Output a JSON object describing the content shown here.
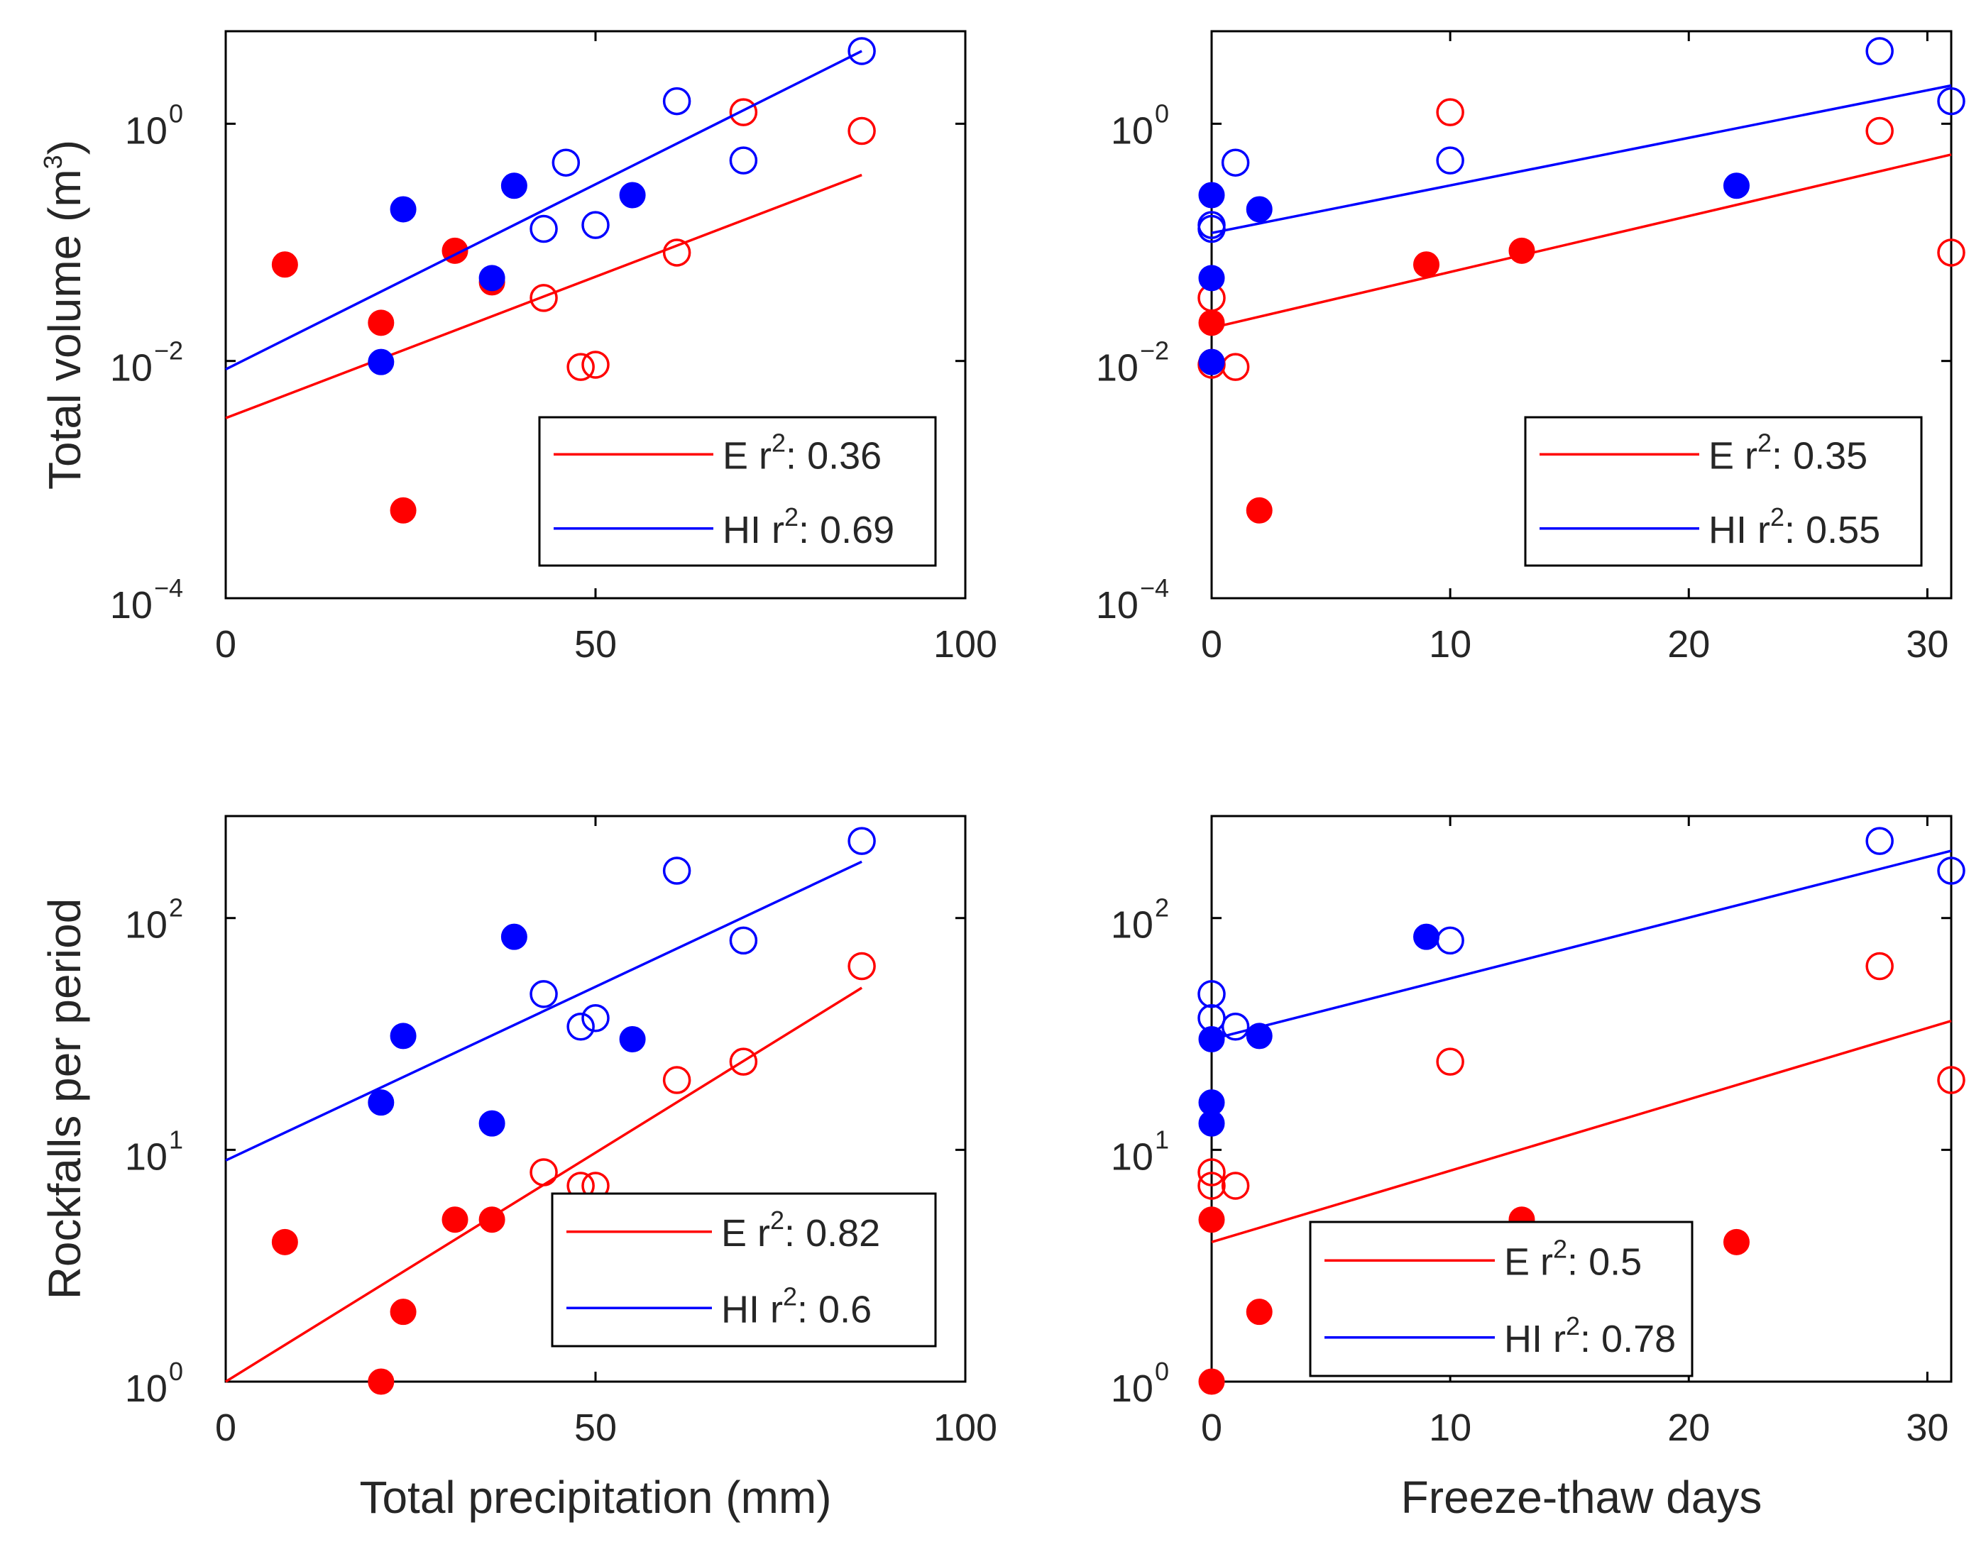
{
  "colors": {
    "E": "#ff0000",
    "HI": "#0000ff",
    "axis": "#000000"
  },
  "legend_entries": [
    {
      "series": "E",
      "prefix": "E r",
      "exp": "2",
      "suffix": ": "
    },
    {
      "series": "HI",
      "prefix": "HI r",
      "exp": "2",
      "suffix": ": "
    }
  ],
  "chart_data": [
    {
      "id": "vol_precip",
      "type": "scatter",
      "y_scale": "log",
      "xlim": [
        0,
        100
      ],
      "ylim_exp": [
        -4,
        0.78
      ],
      "xticks": [
        0,
        50,
        100
      ],
      "ytick_exps": [
        -4,
        -2,
        0
      ],
      "ylabel": {
        "text": "Total volume (m",
        "sup": "3",
        "tail": ")"
      },
      "xlabel": "",
      "legend_r2": [
        "0.36",
        "0.69"
      ],
      "legend_position": "bottom-right",
      "series": [
        {
          "name": "E",
          "fit": {
            "x": [
              0,
              86
            ],
            "y": [
              0.0033,
              0.37
            ]
          },
          "filled": {
            "x": [
              8,
              21,
              24,
              31,
              36
            ],
            "y": [
              0.065,
              0.021,
              0.00055,
              0.085,
              0.046
            ]
          },
          "open": {
            "x": [
              43,
              48,
              50,
              61,
              70,
              86
            ],
            "y": [
              0.034,
              0.0089,
              0.0093,
              0.082,
              1.25,
              0.87
            ]
          }
        },
        {
          "name": "HI",
          "fit": {
            "x": [
              0,
              86
            ],
            "y": [
              0.0085,
              4.1
            ]
          },
          "filled": {
            "x": [
              21,
              24,
              36,
              39,
              55
            ],
            "y": [
              0.0098,
              0.19,
              0.05,
              0.3,
              0.25
            ]
          },
          "open": {
            "x": [
              43,
              46,
              50,
              61,
              70,
              86
            ],
            "y": [
              0.13,
              0.47,
              0.14,
              1.55,
              0.49,
              4.1
            ]
          }
        }
      ]
    },
    {
      "id": "vol_ftd",
      "type": "scatter",
      "y_scale": "log",
      "xlim": [
        0,
        31
      ],
      "ylim_exp": [
        -4,
        0.78
      ],
      "xticks": [
        0,
        10,
        20,
        30
      ],
      "ytick_exps": [
        -4,
        -2,
        0
      ],
      "ylabel": null,
      "xlabel": "",
      "legend_r2": [
        "0.35",
        "0.55"
      ],
      "legend_position": "bottom-right",
      "series": [
        {
          "name": "E",
          "fit": {
            "x": [
              0,
              31
            ],
            "y": [
              0.019,
              0.55
            ]
          },
          "filled": {
            "x": [
              0,
              0,
              2,
              9,
              13
            ],
            "y": [
              0.021,
              0.0098,
              0.00055,
              0.065,
              0.085
            ]
          },
          "open": {
            "x": [
              0,
              0,
              1,
              10,
              28,
              31
            ],
            "y": [
              0.034,
              0.0093,
              0.0089,
              1.25,
              0.87,
              0.082
            ]
          }
        },
        {
          "name": "HI",
          "fit": {
            "x": [
              0,
              31
            ],
            "y": [
              0.12,
              2.1
            ]
          },
          "filled": {
            "x": [
              0,
              0,
              0,
              2,
              22
            ],
            "y": [
              0.25,
              0.05,
              0.0098,
              0.19,
              0.3
            ]
          },
          "open": {
            "x": [
              0,
              0,
              1,
              10,
              28,
              31
            ],
            "y": [
              0.13,
              0.14,
              0.47,
              0.49,
              4.1,
              1.55
            ]
          }
        }
      ]
    },
    {
      "id": "count_precip",
      "type": "scatter",
      "y_scale": "log",
      "xlim": [
        0,
        100
      ],
      "ylim_exp": [
        0,
        2.44
      ],
      "xticks": [
        0,
        50,
        100
      ],
      "ytick_exps": [
        0,
        1,
        2
      ],
      "ylabel": {
        "text": "Rockfalls per period",
        "sup": "",
        "tail": ""
      },
      "xlabel": "Total precipitation (mm)",
      "legend_r2": [
        "0.82",
        "0.6"
      ],
      "legend_position": "bottom-right",
      "series": [
        {
          "name": "E",
          "fit": {
            "x": [
              0,
              86
            ],
            "y": [
              1,
              50
            ]
          },
          "filled": {
            "x": [
              8,
              21,
              24,
              31,
              36
            ],
            "y": [
              4,
              1,
              2,
              5,
              5
            ]
          },
          "open": {
            "x": [
              43,
              48,
              50,
              61,
              70,
              86
            ],
            "y": [
              8,
              7,
              7,
              20,
              24,
              62
            ]
          }
        },
        {
          "name": "HI",
          "fit": {
            "x": [
              0,
              86
            ],
            "y": [
              9,
              175
            ]
          },
          "filled": {
            "x": [
              21,
              24,
              36,
              39,
              55
            ],
            "y": [
              16,
              31,
              13,
              83,
              30
            ]
          },
          "open": {
            "x": [
              43,
              48,
              50,
              61,
              70,
              86
            ],
            "y": [
              47,
              34,
              37,
              160,
              80,
              215
            ]
          }
        }
      ]
    },
    {
      "id": "count_ftd",
      "type": "scatter",
      "y_scale": "log",
      "xlim": [
        0,
        31
      ],
      "ylim_exp": [
        0,
        2.44
      ],
      "xticks": [
        0,
        10,
        20,
        30
      ],
      "ytick_exps": [
        0,
        1,
        2
      ],
      "ylabel": null,
      "xlabel": "Freeze-thaw days",
      "legend_r2": [
        "0.5",
        "0.78"
      ],
      "legend_position": "bottom-right",
      "series": [
        {
          "name": "E",
          "fit": {
            "x": [
              0,
              31
            ],
            "y": [
              4,
              36
            ]
          },
          "filled": {
            "x": [
              0,
              0,
              2,
              13,
              22
            ],
            "y": [
              5,
              1,
              2,
              5,
              4
            ]
          },
          "open": {
            "x": [
              0,
              0,
              1,
              10,
              28,
              31
            ],
            "y": [
              8,
              7,
              7,
              24,
              62,
              20
            ]
          }
        },
        {
          "name": "HI",
          "fit": {
            "x": [
              0,
              31
            ],
            "y": [
              30,
              195
            ]
          },
          "filled": {
            "x": [
              0,
              0,
              0,
              2,
              9
            ],
            "y": [
              30,
              16,
              13,
              31,
              83
            ]
          },
          "open": {
            "x": [
              0,
              0,
              1,
              10,
              28,
              31
            ],
            "y": [
              47,
              37,
              34,
              80,
              215,
              160
            ]
          }
        }
      ]
    }
  ]
}
